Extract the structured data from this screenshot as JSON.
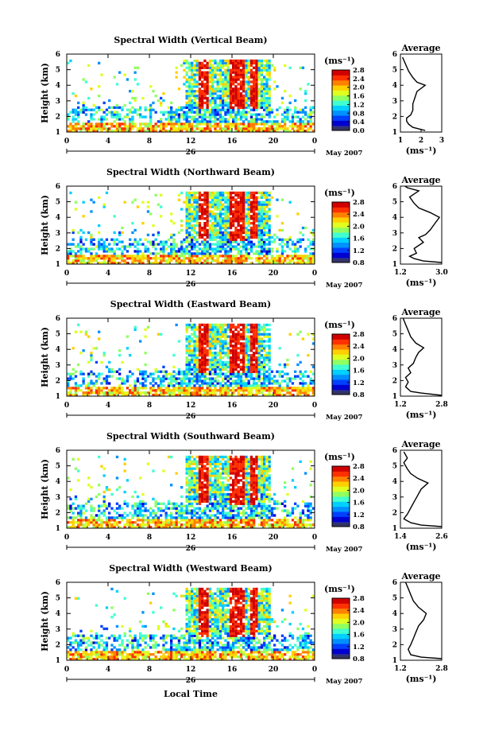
{
  "xlabel": "Local Time",
  "day_label": "26",
  "date_label": "May 2007",
  "unit_label": "(ms⁻¹)",
  "avg_xlabel": "(ms⁻¹)",
  "avg_title": "Average",
  "ylabel": "Height (km)",
  "colors": {
    "colormap": [
      "#2b2f8f",
      "#0000d0",
      "#0040ff",
      "#0090ff",
      "#00d0ff",
      "#40ffd0",
      "#90ff60",
      "#e0ff20",
      "#ffd000",
      "#ff8000",
      "#ff3000",
      "#d00000"
    ],
    "band_low": "#333366"
  },
  "chart_data": [
    {
      "type": "heatmap",
      "title": "Spectral Width (Vertical Beam)",
      "x_ticks": [
        "0",
        "4",
        "8",
        "12",
        "16",
        "20",
        "0"
      ],
      "y_ticks": [
        "1",
        "2",
        "3",
        "4",
        "5",
        "6"
      ],
      "xlim": [
        0,
        24
      ],
      "ylim": [
        1,
        6
      ],
      "colorbar_ticks": [
        "0.0",
        "0.4",
        "0.8",
        "1.2",
        "1.6",
        "2.0",
        "2.4",
        "2.8"
      ],
      "clim": [
        0,
        2.8
      ],
      "average": {
        "xlim": [
          1,
          3
        ],
        "x_ticks": [
          "1",
          "2",
          "3"
        ],
        "profile": [
          [
            2.2,
            1.1
          ],
          [
            1.9,
            1.2
          ],
          [
            1.6,
            1.3
          ],
          [
            1.4,
            1.5
          ],
          [
            1.3,
            1.7
          ],
          [
            1.3,
            1.9
          ],
          [
            1.5,
            2.1
          ],
          [
            1.6,
            2.4
          ],
          [
            1.6,
            2.8
          ],
          [
            1.7,
            3.2
          ],
          [
            1.8,
            3.6
          ],
          [
            2.2,
            4.0
          ],
          [
            1.8,
            4.2
          ],
          [
            1.6,
            4.5
          ],
          [
            1.4,
            4.9
          ],
          [
            1.3,
            5.2
          ],
          [
            1.2,
            5.5
          ],
          [
            1.1,
            5.8
          ]
        ]
      }
    },
    {
      "type": "heatmap",
      "title": "Spectral Width (Northward Beam)",
      "x_ticks": [
        "0",
        "4",
        "8",
        "12",
        "16",
        "20",
        "0"
      ],
      "y_ticks": [
        "1",
        "2",
        "3",
        "4",
        "5",
        "6"
      ],
      "xlim": [
        0,
        24
      ],
      "ylim": [
        1,
        6
      ],
      "colorbar_ticks": [
        "0.8",
        "1.2",
        "1.6",
        "2.0",
        "2.4",
        "2.8"
      ],
      "clim": [
        0.8,
        2.8
      ],
      "average": {
        "xlim": [
          1.2,
          3.0
        ],
        "x_ticks": [
          "1.2",
          "3.0"
        ],
        "profile": [
          [
            3.0,
            1.1
          ],
          [
            2.2,
            1.2
          ],
          [
            1.8,
            1.35
          ],
          [
            1.6,
            1.5
          ],
          [
            1.9,
            1.7
          ],
          [
            1.8,
            2.0
          ],
          [
            2.2,
            2.4
          ],
          [
            2.0,
            2.7
          ],
          [
            2.3,
            2.9
          ],
          [
            2.5,
            3.2
          ],
          [
            2.7,
            3.6
          ],
          [
            2.9,
            4.0
          ],
          [
            2.5,
            4.3
          ],
          [
            2.0,
            4.6
          ],
          [
            1.8,
            4.9
          ],
          [
            1.6,
            5.3
          ],
          [
            2.0,
            5.7
          ],
          [
            1.5,
            5.9
          ],
          [
            1.4,
            6.0
          ]
        ]
      }
    },
    {
      "type": "heatmap",
      "title": "Spectral Width (Eastward Beam)",
      "x_ticks": [
        "0",
        "4",
        "8",
        "12",
        "16",
        "20",
        "0"
      ],
      "y_ticks": [
        "1",
        "2",
        "3",
        "4",
        "5",
        "6"
      ],
      "xlim": [
        0,
        24
      ],
      "ylim": [
        1,
        6
      ],
      "colorbar_ticks": [
        "0.8",
        "1.2",
        "1.6",
        "2.0",
        "2.4",
        "2.8"
      ],
      "clim": [
        0.8,
        2.8
      ],
      "average": {
        "xlim": [
          1.2,
          2.8
        ],
        "x_ticks": [
          "1.2",
          "2.8"
        ],
        "profile": [
          [
            2.8,
            1.05
          ],
          [
            2.0,
            1.2
          ],
          [
            1.6,
            1.3
          ],
          [
            1.4,
            1.6
          ],
          [
            1.5,
            1.9
          ],
          [
            1.4,
            2.2
          ],
          [
            1.6,
            2.5
          ],
          [
            1.5,
            2.8
          ],
          [
            1.7,
            3.1
          ],
          [
            1.8,
            3.5
          ],
          [
            1.9,
            3.8
          ],
          [
            2.1,
            4.1
          ],
          [
            1.8,
            4.4
          ],
          [
            1.6,
            4.8
          ],
          [
            1.5,
            5.2
          ],
          [
            1.4,
            5.6
          ],
          [
            1.3,
            6.0
          ]
        ]
      }
    },
    {
      "type": "heatmap",
      "title": "Spectral Width (Southward Beam)",
      "x_ticks": [
        "0",
        "4",
        "8",
        "12",
        "16",
        "20",
        "0"
      ],
      "y_ticks": [
        "1",
        "2",
        "3",
        "4",
        "5",
        "6"
      ],
      "xlim": [
        0,
        24
      ],
      "ylim": [
        1,
        6
      ],
      "colorbar_ticks": [
        "0.8",
        "1.2",
        "1.6",
        "2.0",
        "2.4",
        "2.8"
      ],
      "clim": [
        0.8,
        2.8
      ],
      "average": {
        "xlim": [
          1.4,
          2.6
        ],
        "x_ticks": [
          "1.4",
          "2.6"
        ],
        "profile": [
          [
            2.6,
            1.1
          ],
          [
            2.0,
            1.2
          ],
          [
            1.7,
            1.35
          ],
          [
            1.5,
            1.6
          ],
          [
            1.6,
            1.9
          ],
          [
            1.7,
            2.3
          ],
          [
            1.8,
            2.7
          ],
          [
            1.9,
            3.1
          ],
          [
            2.0,
            3.5
          ],
          [
            2.2,
            3.9
          ],
          [
            1.9,
            4.2
          ],
          [
            1.7,
            4.5
          ],
          [
            1.6,
            4.8
          ],
          [
            1.5,
            5.2
          ],
          [
            1.6,
            5.5
          ],
          [
            1.5,
            5.9
          ]
        ]
      }
    },
    {
      "type": "heatmap",
      "title": "Spectral Width (Westward Beam)",
      "x_ticks": [
        "0",
        "4",
        "8",
        "12",
        "16",
        "20",
        "0"
      ],
      "y_ticks": [
        "1",
        "2",
        "3",
        "4",
        "5",
        "6"
      ],
      "xlim": [
        0,
        24
      ],
      "ylim": [
        1,
        6
      ],
      "colorbar_ticks": [
        "0.8",
        "1.2",
        "1.6",
        "2.0",
        "2.4",
        "2.8"
      ],
      "clim": [
        0.8,
        2.8
      ],
      "average": {
        "xlim": [
          1.2,
          2.8
        ],
        "x_ticks": [
          "1.2",
          "2.8"
        ],
        "profile": [
          [
            2.8,
            1.1
          ],
          [
            2.0,
            1.2
          ],
          [
            1.6,
            1.35
          ],
          [
            1.5,
            1.7
          ],
          [
            1.6,
            2.0
          ],
          [
            1.7,
            2.4
          ],
          [
            1.8,
            2.8
          ],
          [
            1.9,
            3.2
          ],
          [
            2.1,
            3.6
          ],
          [
            2.2,
            4.0
          ],
          [
            1.9,
            4.4
          ],
          [
            1.7,
            4.8
          ],
          [
            1.6,
            5.2
          ],
          [
            1.5,
            5.6
          ],
          [
            1.4,
            6.0
          ]
        ]
      }
    }
  ]
}
